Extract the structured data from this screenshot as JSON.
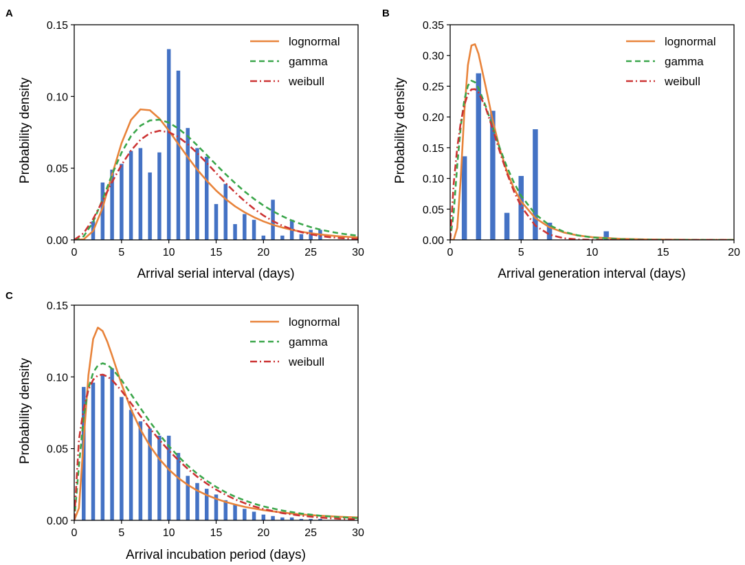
{
  "colors": {
    "bar": "#4472c4",
    "lognormal": "#e8833a",
    "gamma": "#3aa64a",
    "weibull": "#cc3333"
  },
  "legend_labels": [
    "lognormal",
    "gamma",
    "weibull"
  ],
  "chart_data": [
    {
      "panel": "A",
      "type": "bar",
      "xlabel": "Arrival serial interval (days)",
      "ylabel": "Probability density",
      "xlim": [
        0,
        30
      ],
      "ylim": [
        0,
        0.15
      ],
      "xticks": [
        0,
        5,
        10,
        15,
        20,
        25,
        30
      ],
      "yticks": [
        0.0,
        0.05,
        0.1,
        0.15
      ],
      "ytick_labels": [
        "0.00",
        "0.05",
        "0.10",
        "0.15"
      ],
      "legend_position": "top-right",
      "bars": {
        "x": [
          2,
          3,
          4,
          5,
          6,
          7,
          8,
          9,
          10,
          11,
          12,
          13,
          14,
          15,
          16,
          17,
          18,
          19,
          20,
          21,
          22,
          23,
          24,
          25,
          26
        ],
        "values": [
          0.013,
          0.04,
          0.049,
          0.053,
          0.062,
          0.064,
          0.047,
          0.061,
          0.133,
          0.118,
          0.078,
          0.064,
          0.058,
          0.025,
          0.039,
          0.011,
          0.018,
          0.014,
          0.003,
          0.028,
          0.003,
          0.014,
          0.004,
          0.007,
          0.007
        ]
      },
      "series": [
        {
          "name": "lognormal",
          "x": [
            0,
            1,
            2,
            3,
            4,
            5,
            6,
            7,
            8,
            9,
            10,
            11,
            12,
            13,
            14,
            15,
            16,
            17,
            18,
            19,
            20,
            21,
            22,
            23,
            24,
            25,
            26,
            27,
            28,
            29,
            30
          ],
          "values": [
            0,
            0.0004,
            0.0062,
            0.0224,
            0.0455,
            0.0674,
            0.0836,
            0.091,
            0.0904,
            0.0846,
            0.0762,
            0.0669,
            0.0577,
            0.049,
            0.0413,
            0.0344,
            0.0285,
            0.0234,
            0.0193,
            0.0158,
            0.0129,
            0.0105,
            0.0086,
            0.007,
            0.0057,
            0.0046,
            0.0038,
            0.0031,
            0.0025,
            0.0021,
            0.0017
          ]
        },
        {
          "name": "gamma",
          "x": [
            0,
            1,
            2,
            3,
            4,
            5,
            6,
            7,
            8,
            9,
            10,
            11,
            12,
            13,
            14,
            15,
            16,
            17,
            18,
            19,
            20,
            21,
            22,
            23,
            24,
            25,
            26,
            27,
            28,
            29,
            30
          ],
          "values": [
            0,
            0.0025,
            0.0125,
            0.0283,
            0.0456,
            0.0608,
            0.0724,
            0.0796,
            0.0833,
            0.0838,
            0.0817,
            0.0777,
            0.0723,
            0.0659,
            0.0592,
            0.0524,
            0.0458,
            0.0396,
            0.0338,
            0.0286,
            0.024,
            0.02,
            0.0165,
            0.0135,
            0.011,
            0.0089,
            0.0072,
            0.0058,
            0.0046,
            0.0037,
            0.0029
          ]
        },
        {
          "name": "weibull",
          "x": [
            0,
            1,
            2,
            3,
            4,
            5,
            6,
            7,
            8,
            9,
            10,
            11,
            12,
            13,
            14,
            15,
            16,
            17,
            18,
            19,
            20,
            21,
            22,
            23,
            24,
            25,
            26,
            27,
            28,
            29,
            30
          ],
          "values": [
            0,
            0.0047,
            0.0146,
            0.0272,
            0.0403,
            0.0523,
            0.0623,
            0.0698,
            0.0744,
            0.0761,
            0.0751,
            0.0718,
            0.0667,
            0.0605,
            0.0537,
            0.0466,
            0.0396,
            0.0331,
            0.0271,
            0.0217,
            0.017,
            0.0131,
            0.0099,
            0.0074,
            0.0054,
            0.0039,
            0.0027,
            0.0019,
            0.0013,
            0.0009,
            0.0006
          ]
        }
      ]
    },
    {
      "panel": "B",
      "type": "bar",
      "xlabel": "Arrival generation interval (days)",
      "ylabel": "Probability density",
      "xlim": [
        0,
        20
      ],
      "ylim": [
        0,
        0.35
      ],
      "xticks": [
        0,
        5,
        10,
        15,
        20
      ],
      "yticks": [
        0.0,
        0.05,
        0.1,
        0.15,
        0.2,
        0.25,
        0.3,
        0.35
      ],
      "ytick_labels": [
        "0.00",
        "0.05",
        "0.10",
        "0.15",
        "0.20",
        "0.25",
        "0.30",
        "0.35"
      ],
      "legend_position": "top-right",
      "bars": {
        "x": [
          1,
          2,
          3,
          4,
          5,
          6,
          7,
          11
        ],
        "values": [
          0.136,
          0.271,
          0.21,
          0.044,
          0.104,
          0.18,
          0.028,
          0.014
        ]
      },
      "series": [
        {
          "name": "lognormal",
          "x": [
            0,
            0.25,
            0.5,
            0.75,
            1,
            1.25,
            1.5,
            1.75,
            2,
            2.5,
            3,
            3.5,
            4,
            4.5,
            5,
            6,
            7,
            8,
            9,
            10,
            12,
            14,
            16,
            18,
            20
          ],
          "values": [
            0,
            0.0002,
            0.0197,
            0.1019,
            0.2088,
            0.2843,
            0.3163,
            0.3183,
            0.3025,
            0.2496,
            0.1944,
            0.1477,
            0.1111,
            0.0833,
            0.0625,
            0.0355,
            0.0205,
            0.0121,
            0.0072,
            0.0044,
            0.0017,
            0.0007,
            0.0003,
            0.0001,
            0.0001
          ]
        },
        {
          "name": "gamma",
          "x": [
            0,
            0.25,
            0.5,
            0.75,
            1,
            1.25,
            1.5,
            1.75,
            2,
            2.5,
            3,
            3.5,
            4,
            4.5,
            5,
            6,
            7,
            8,
            9,
            10,
            12,
            14,
            16,
            18,
            20
          ],
          "values": [
            0,
            0.0448,
            0.1216,
            0.1856,
            0.2278,
            0.2508,
            0.2589,
            0.2565,
            0.2469,
            0.2177,
            0.1832,
            0.1492,
            0.1187,
            0.0929,
            0.0718,
            0.0418,
            0.0238,
            0.0133,
            0.0073,
            0.004,
            0.0012,
            0.0003,
            0.0001,
            0,
            0
          ]
        },
        {
          "name": "weibull",
          "x": [
            0,
            0.25,
            0.5,
            0.75,
            1,
            1.25,
            1.5,
            1.75,
            2,
            2.5,
            3,
            3.5,
            4,
            4.5,
            5,
            6,
            7,
            8,
            9,
            10,
            12,
            14,
            16,
            18,
            20
          ],
          "values": [
            0,
            0.0918,
            0.1505,
            0.1917,
            0.2198,
            0.2369,
            0.2448,
            0.2452,
            0.2396,
            0.215,
            0.1805,
            0.1434,
            0.1085,
            0.0786,
            0.0546,
            0.0232,
            0.0085,
            0.0027,
            0.0007,
            0.0002,
            0,
            0,
            0,
            0,
            0
          ]
        }
      ]
    },
    {
      "panel": "C",
      "type": "bar",
      "xlabel": "Arrival incubation period (days)",
      "ylabel": "Probability density",
      "xlim": [
        0,
        30
      ],
      "ylim": [
        0,
        0.15
      ],
      "xticks": [
        0,
        5,
        10,
        15,
        20,
        25,
        30
      ],
      "yticks": [
        0.0,
        0.05,
        0.1,
        0.15
      ],
      "ytick_labels": [
        "0.00",
        "0.05",
        "0.10",
        "0.15"
      ],
      "legend_position": "top-right",
      "bars": {
        "x": [
          1,
          2,
          3,
          4,
          5,
          6,
          7,
          8,
          9,
          10,
          11,
          12,
          13,
          14,
          15,
          16,
          17,
          18,
          19,
          20,
          21,
          22,
          23,
          24,
          25,
          26
        ],
        "values": [
          0.093,
          0.096,
          0.102,
          0.106,
          0.086,
          0.077,
          0.069,
          0.064,
          0.059,
          0.059,
          0.047,
          0.031,
          0.026,
          0.022,
          0.018,
          0.014,
          0.011,
          0.008,
          0.006,
          0.004,
          0.003,
          0.002,
          0.002,
          0.001,
          0.001,
          0.001
        ]
      },
      "series": [
        {
          "name": "lognormal",
          "x": [
            0,
            0.5,
            1,
            1.5,
            2,
            2.5,
            3,
            3.5,
            4,
            5,
            6,
            7,
            8,
            9,
            10,
            11,
            12,
            13,
            14,
            15,
            16,
            17,
            18,
            19,
            20,
            22,
            24,
            26,
            28,
            30
          ],
          "values": [
            0,
            0.0085,
            0.0559,
            0.1011,
            0.1264,
            0.1344,
            0.132,
            0.1245,
            0.115,
            0.095,
            0.0775,
            0.0633,
            0.0518,
            0.0427,
            0.0354,
            0.0295,
            0.0247,
            0.0208,
            0.0176,
            0.015,
            0.0128,
            0.011,
            0.0094,
            0.0082,
            0.0071,
            0.0054,
            0.0041,
            0.0032,
            0.0025,
            0.002
          ]
        },
        {
          "name": "gamma",
          "x": [
            0,
            0.5,
            1,
            1.5,
            2,
            2.5,
            3,
            3.5,
            4,
            5,
            6,
            7,
            8,
            9,
            10,
            11,
            12,
            13,
            14,
            15,
            16,
            17,
            18,
            19,
            20,
            22,
            24,
            26,
            28,
            30
          ],
          "values": [
            0,
            0.0381,
            0.0722,
            0.0919,
            0.103,
            0.108,
            0.1095,
            0.1084,
            0.1057,
            0.0978,
            0.088,
            0.0782,
            0.0687,
            0.0599,
            0.0518,
            0.0446,
            0.0381,
            0.0325,
            0.0276,
            0.0233,
            0.0196,
            0.0165,
            0.0139,
            0.0116,
            0.0097,
            0.0068,
            0.0047,
            0.0032,
            0.0022,
            0.0015
          ]
        },
        {
          "name": "weibull",
          "x": [
            0,
            0.5,
            1,
            1.5,
            2,
            2.5,
            3,
            3.5,
            4,
            5,
            6,
            7,
            8,
            9,
            10,
            11,
            12,
            13,
            14,
            15,
            16,
            17,
            18,
            19,
            20,
            22,
            24,
            26,
            28,
            30
          ],
          "values": [
            0,
            0.0562,
            0.0781,
            0.091,
            0.098,
            0.1011,
            0.1016,
            0.1003,
            0.0978,
            0.0903,
            0.0816,
            0.0727,
            0.0641,
            0.0561,
            0.0487,
            0.042,
            0.0359,
            0.0304,
            0.0256,
            0.0214,
            0.0178,
            0.0146,
            0.012,
            0.0097,
            0.0079,
            0.005,
            0.0032,
            0.0019,
            0.0011,
            0.0007
          ]
        }
      ]
    }
  ]
}
